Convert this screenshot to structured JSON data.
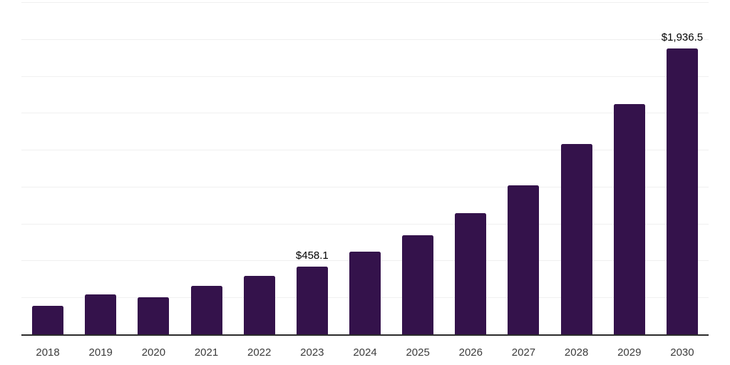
{
  "chart_data": {
    "type": "bar",
    "title": "",
    "xlabel": "",
    "ylabel": "",
    "categories": [
      "2018",
      "2019",
      "2020",
      "2021",
      "2022",
      "2023",
      "2024",
      "2025",
      "2026",
      "2027",
      "2028",
      "2029",
      "2030"
    ],
    "values": [
      195,
      270,
      250,
      330,
      395,
      458.1,
      560,
      670,
      820,
      1010,
      1290,
      1560,
      1936.5
    ],
    "data_labels": {
      "2023": "$458.1",
      "2030": "$1,936.5"
    },
    "ylim": [
      0,
      2250
    ],
    "grid_step": 250,
    "grid": true,
    "legend": false,
    "y_axis_labels_visible": false,
    "colors": {
      "bar": "#34124B",
      "gridline": "#F0F0F0",
      "axis_line": "#2B2B2B",
      "tick_label": "#3C3C3C",
      "data_label": "#000000",
      "background": "#FFFFFF"
    }
  }
}
